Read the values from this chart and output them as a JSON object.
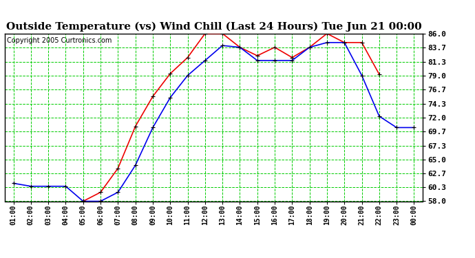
{
  "title": "Outside Temperature (vs) Wind Chill (Last 24 Hours) Tue Jun 21 00:00",
  "copyright": "Copyright 2005 Curtronics.com",
  "x_labels": [
    "01:00",
    "02:00",
    "03:00",
    "04:00",
    "05:00",
    "06:00",
    "07:00",
    "08:00",
    "09:00",
    "10:00",
    "11:00",
    "12:00",
    "13:00",
    "14:00",
    "15:00",
    "16:00",
    "17:00",
    "18:00",
    "19:00",
    "20:00",
    "21:00",
    "22:00",
    "23:00",
    "00:00"
  ],
  "blue_data": [
    61.0,
    60.5,
    60.5,
    60.5,
    58.0,
    58.0,
    59.5,
    64.0,
    70.3,
    75.3,
    79.0,
    81.5,
    84.0,
    83.7,
    81.5,
    81.5,
    81.5,
    83.7,
    84.5,
    84.5,
    79.0,
    72.2,
    70.3,
    70.3
  ],
  "red_data": [
    null,
    null,
    null,
    null,
    58.0,
    59.5,
    63.5,
    70.5,
    75.5,
    79.3,
    82.0,
    86.0,
    86.0,
    83.7,
    82.3,
    83.7,
    82.0,
    83.7,
    86.0,
    84.5,
    84.5,
    79.2,
    null,
    null
  ],
  "ylim": [
    58.0,
    86.0
  ],
  "yticks": [
    58.0,
    60.3,
    62.7,
    65.0,
    67.3,
    69.7,
    72.0,
    74.3,
    76.7,
    79.0,
    81.3,
    83.7,
    86.0
  ],
  "blue_color": "#0000ee",
  "red_color": "#ee0000",
  "bg_color": "#ffffff",
  "grid_color": "#00cc00",
  "title_fontsize": 11,
  "copyright_fontsize": 7,
  "tick_fontsize": 8,
  "xtick_fontsize": 7
}
